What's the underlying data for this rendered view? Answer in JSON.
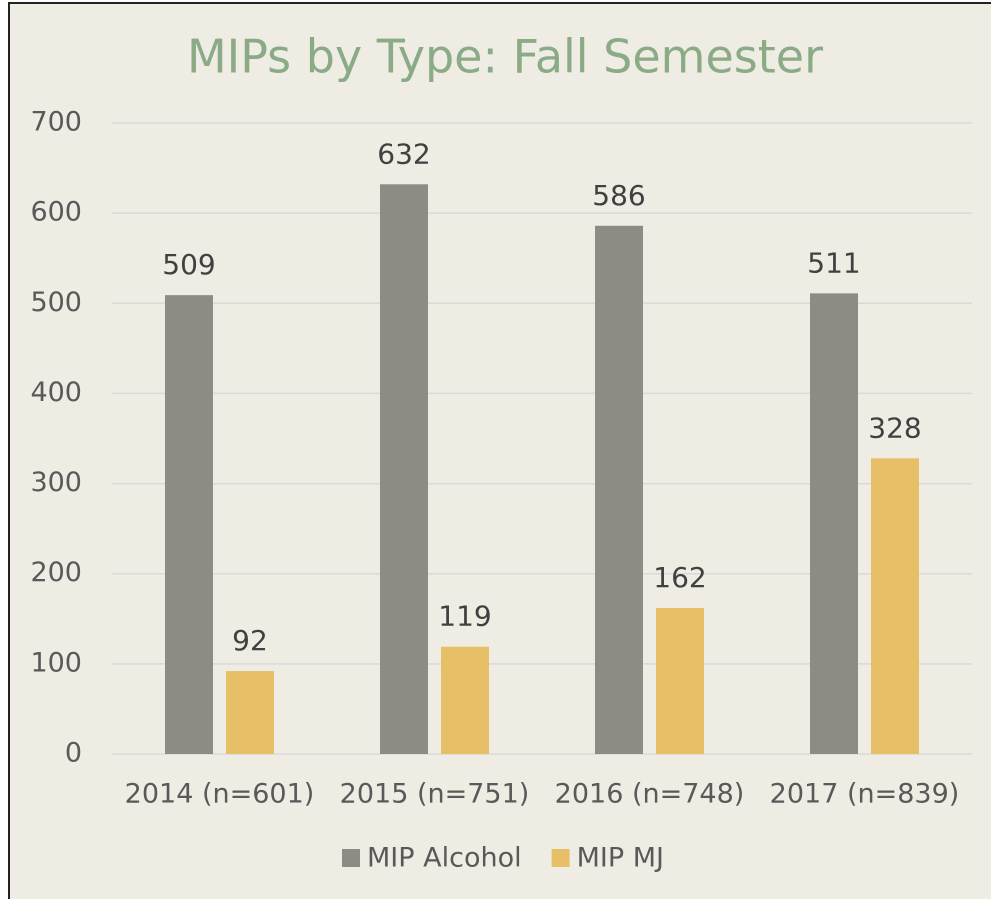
{
  "chart_data": {
    "type": "bar",
    "title": "MIPs by Type:  Fall Semester",
    "categories": [
      "2014 (n=601)",
      "2015 (n=751)",
      "2016 (n=748)",
      "2017 (n=839)"
    ],
    "series": [
      {
        "name": "MIP Alcohol",
        "color": "#8c8c84",
        "values": [
          509,
          632,
          586,
          511
        ]
      },
      {
        "name": "MIP MJ",
        "color": "#e6bf67",
        "values": [
          92,
          119,
          162,
          328
        ]
      }
    ],
    "ylim": [
      0,
      700
    ],
    "yticks": [
      0,
      100,
      200,
      300,
      400,
      500,
      600,
      700
    ],
    "grid": true,
    "legend": "bottom"
  }
}
